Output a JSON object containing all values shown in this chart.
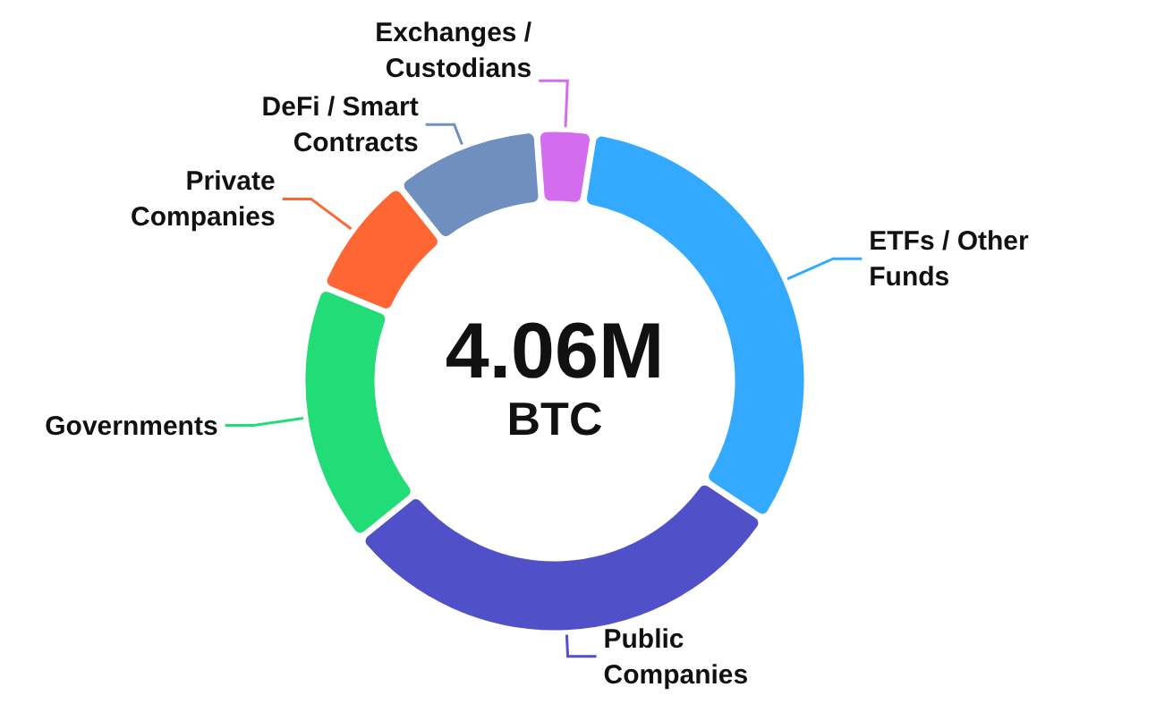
{
  "chart_data": {
    "type": "donut",
    "categories": [
      "ETFs / Other Funds",
      "Public Companies",
      "Governments",
      "Private Companies",
      "DeFi / Smart Contracts",
      "Exchanges / Custodians"
    ],
    "values": [
      32,
      30,
      17,
      8,
      9.5,
      3.5
    ],
    "colors": [
      "#33aaff",
      "#5050c8",
      "#22dd77",
      "#ff6633",
      "#6f8fbf",
      "#d46cf0"
    ],
    "annotations": [
      "4.06M",
      "BTC"
    ]
  }
}
